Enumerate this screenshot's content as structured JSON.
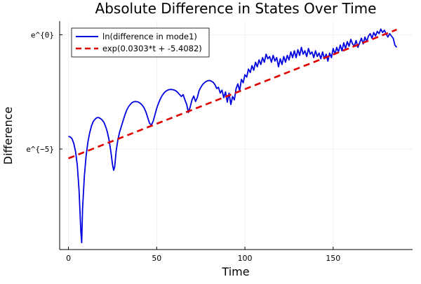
{
  "chart_data": {
    "type": "line",
    "title": "Absolute Difference in States Over Time",
    "xlabel": "Time",
    "ylabel": "Difference",
    "xlim": [
      -5,
      195
    ],
    "ylim": [
      -9.4,
      0.6
    ],
    "y_scale_note": "y values are natural-log values; tick labels shown as e^{n}",
    "x_ticks": [
      {
        "value": 0,
        "label": "0"
      },
      {
        "value": 50,
        "label": "50"
      },
      {
        "value": 100,
        "label": "100"
      },
      {
        "value": 150,
        "label": "150"
      }
    ],
    "y_ticks": [
      {
        "value": 0,
        "label": "e^{0}"
      },
      {
        "value": -5,
        "label": "e^{−5}"
      }
    ],
    "grid": true,
    "legend_position": "top-left",
    "series": [
      {
        "name": "ln(difference in mode1)",
        "color": "#0000e0",
        "style": "solid",
        "points": [
          [
            0,
            -4.45
          ],
          [
            1,
            -4.47
          ],
          [
            2,
            -4.55
          ],
          [
            3,
            -4.75
          ],
          [
            4,
            -5.1
          ],
          [
            5,
            -5.7
          ],
          [
            6,
            -6.8
          ],
          [
            7,
            -8.6
          ],
          [
            7.5,
            -9.1
          ],
          [
            8,
            -7.6
          ],
          [
            9,
            -6.2
          ],
          [
            10,
            -5.3
          ],
          [
            11,
            -4.7
          ],
          [
            12,
            -4.3
          ],
          [
            13,
            -4.0
          ],
          [
            14,
            -3.8
          ],
          [
            15,
            -3.7
          ],
          [
            16,
            -3.63
          ],
          [
            17,
            -3.62
          ],
          [
            18,
            -3.66
          ],
          [
            19,
            -3.72
          ],
          [
            20,
            -3.82
          ],
          [
            21,
            -4.0
          ],
          [
            22,
            -4.25
          ],
          [
            23,
            -4.6
          ],
          [
            24,
            -5.1
          ],
          [
            25,
            -5.7
          ],
          [
            25.6,
            -5.93
          ],
          [
            26.2,
            -5.78
          ],
          [
            27,
            -5.1
          ],
          [
            28,
            -4.6
          ],
          [
            29,
            -4.25
          ],
          [
            30,
            -4.0
          ],
          [
            31,
            -3.75
          ],
          [
            32,
            -3.5
          ],
          [
            33,
            -3.3
          ],
          [
            34,
            -3.15
          ],
          [
            35,
            -3.05
          ],
          [
            36,
            -2.97
          ],
          [
            37,
            -2.93
          ],
          [
            38,
            -2.92
          ],
          [
            39,
            -2.93
          ],
          [
            40,
            -2.96
          ],
          [
            41,
            -3.02
          ],
          [
            42,
            -3.1
          ],
          [
            43,
            -3.22
          ],
          [
            44,
            -3.4
          ],
          [
            45,
            -3.65
          ],
          [
            46,
            -3.88
          ],
          [
            47,
            -3.95
          ],
          [
            48,
            -3.78
          ],
          [
            49,
            -3.5
          ],
          [
            50,
            -3.22
          ],
          [
            51,
            -3.0
          ],
          [
            52,
            -2.82
          ],
          [
            53,
            -2.67
          ],
          [
            54,
            -2.56
          ],
          [
            55,
            -2.48
          ],
          [
            56,
            -2.43
          ],
          [
            57,
            -2.4
          ],
          [
            58,
            -2.39
          ],
          [
            59,
            -2.4
          ],
          [
            60,
            -2.42
          ],
          [
            61,
            -2.46
          ],
          [
            62,
            -2.53
          ],
          [
            63,
            -2.62
          ],
          [
            64,
            -2.7
          ],
          [
            65,
            -2.62
          ],
          [
            66,
            -2.85
          ],
          [
            67,
            -3.05
          ],
          [
            68,
            -3.4
          ],
          [
            69,
            -3.15
          ],
          [
            70,
            -2.85
          ],
          [
            71,
            -2.68
          ],
          [
            72,
            -2.92
          ],
          [
            73,
            -2.75
          ],
          [
            74,
            -2.45
          ],
          [
            75,
            -2.3
          ],
          [
            76,
            -2.18
          ],
          [
            77,
            -2.1
          ],
          [
            78,
            -2.04
          ],
          [
            79,
            -2.01
          ],
          [
            80,
            -2.0
          ],
          [
            81,
            -2.03
          ],
          [
            82,
            -2.08
          ],
          [
            83,
            -2.18
          ],
          [
            84,
            -2.35
          ],
          [
            85,
            -2.3
          ],
          [
            86,
            -2.55
          ],
          [
            87,
            -2.42
          ],
          [
            88,
            -2.75
          ],
          [
            89,
            -2.5
          ],
          [
            90,
            -2.95
          ],
          [
            91,
            -2.55
          ],
          [
            92,
            -3.05
          ],
          [
            93,
            -2.7
          ],
          [
            94,
            -2.85
          ],
          [
            95,
            -2.35
          ],
          [
            96,
            -2.15
          ],
          [
            97,
            -2.45
          ],
          [
            98,
            -1.95
          ],
          [
            99,
            -2.1
          ],
          [
            100,
            -1.75
          ],
          [
            101,
            -1.85
          ],
          [
            102,
            -1.5
          ],
          [
            103,
            -1.65
          ],
          [
            104,
            -1.35
          ],
          [
            105,
            -1.55
          ],
          [
            106,
            -1.2
          ],
          [
            107,
            -1.4
          ],
          [
            108,
            -1.1
          ],
          [
            109,
            -1.3
          ],
          [
            110,
            -1.0
          ],
          [
            111,
            -1.2
          ],
          [
            112,
            -0.85
          ],
          [
            113,
            -1.05
          ],
          [
            114,
            -0.95
          ],
          [
            115,
            -1.2
          ],
          [
            116,
            -0.9
          ],
          [
            117,
            -1.15
          ],
          [
            118,
            -1.0
          ],
          [
            119,
            -1.4
          ],
          [
            120,
            -1.05
          ],
          [
            121,
            -1.3
          ],
          [
            122,
            -0.95
          ],
          [
            123,
            -1.2
          ],
          [
            124,
            -0.9
          ],
          [
            125,
            -1.1
          ],
          [
            126,
            -0.75
          ],
          [
            127,
            -1.0
          ],
          [
            128,
            -0.7
          ],
          [
            129,
            -1.0
          ],
          [
            130,
            -0.65
          ],
          [
            131,
            -0.9
          ],
          [
            132,
            -0.55
          ],
          [
            133,
            -0.85
          ],
          [
            134,
            -0.7
          ],
          [
            135,
            -0.95
          ],
          [
            136,
            -0.6
          ],
          [
            137,
            -0.85
          ],
          [
            138,
            -0.75
          ],
          [
            139,
            -1.0
          ],
          [
            140,
            -0.7
          ],
          [
            141,
            -0.95
          ],
          [
            142,
            -0.8
          ],
          [
            143,
            -1.05
          ],
          [
            144,
            -0.75
          ],
          [
            145,
            -1.05
          ],
          [
            146,
            -0.85
          ],
          [
            147,
            -1.15
          ],
          [
            148,
            -0.8
          ],
          [
            149,
            -1.0
          ],
          [
            150,
            -0.6
          ],
          [
            151,
            -0.85
          ],
          [
            152,
            -0.55
          ],
          [
            153,
            -0.75
          ],
          [
            154,
            -0.45
          ],
          [
            155,
            -0.7
          ],
          [
            156,
            -0.35
          ],
          [
            157,
            -0.6
          ],
          [
            158,
            -0.3
          ],
          [
            159,
            -0.5
          ],
          [
            160,
            -0.2
          ],
          [
            161,
            -0.4
          ],
          [
            162,
            -0.5
          ],
          [
            163,
            -0.25
          ],
          [
            164,
            -0.55
          ],
          [
            165,
            -0.35
          ],
          [
            166,
            -0.15
          ],
          [
            167,
            -0.4
          ],
          [
            168,
            -0.1
          ],
          [
            169,
            -0.3
          ],
          [
            170,
            -0.05
          ],
          [
            171,
            0.05
          ],
          [
            172,
            -0.15
          ],
          [
            173,
            0.1
          ],
          [
            174,
            -0.05
          ],
          [
            175,
            0.15
          ],
          [
            176,
            0.05
          ],
          [
            177,
            0.25
          ],
          [
            178,
            0.1
          ],
          [
            179,
            0.2
          ],
          [
            180,
            0.05
          ],
          [
            181,
            -0.1
          ],
          [
            182,
            0.05
          ],
          [
            183,
            -0.05
          ],
          [
            184,
            -0.15
          ],
          [
            185,
            -0.45
          ],
          [
            186,
            -0.55
          ]
        ]
      },
      {
        "name": "exp(0.0303*t + -5.4082)",
        "color": "#e00000",
        "style": "dashed",
        "slope": 0.0303,
        "intercept": -5.4082,
        "t_range": [
          0,
          186
        ]
      }
    ]
  }
}
